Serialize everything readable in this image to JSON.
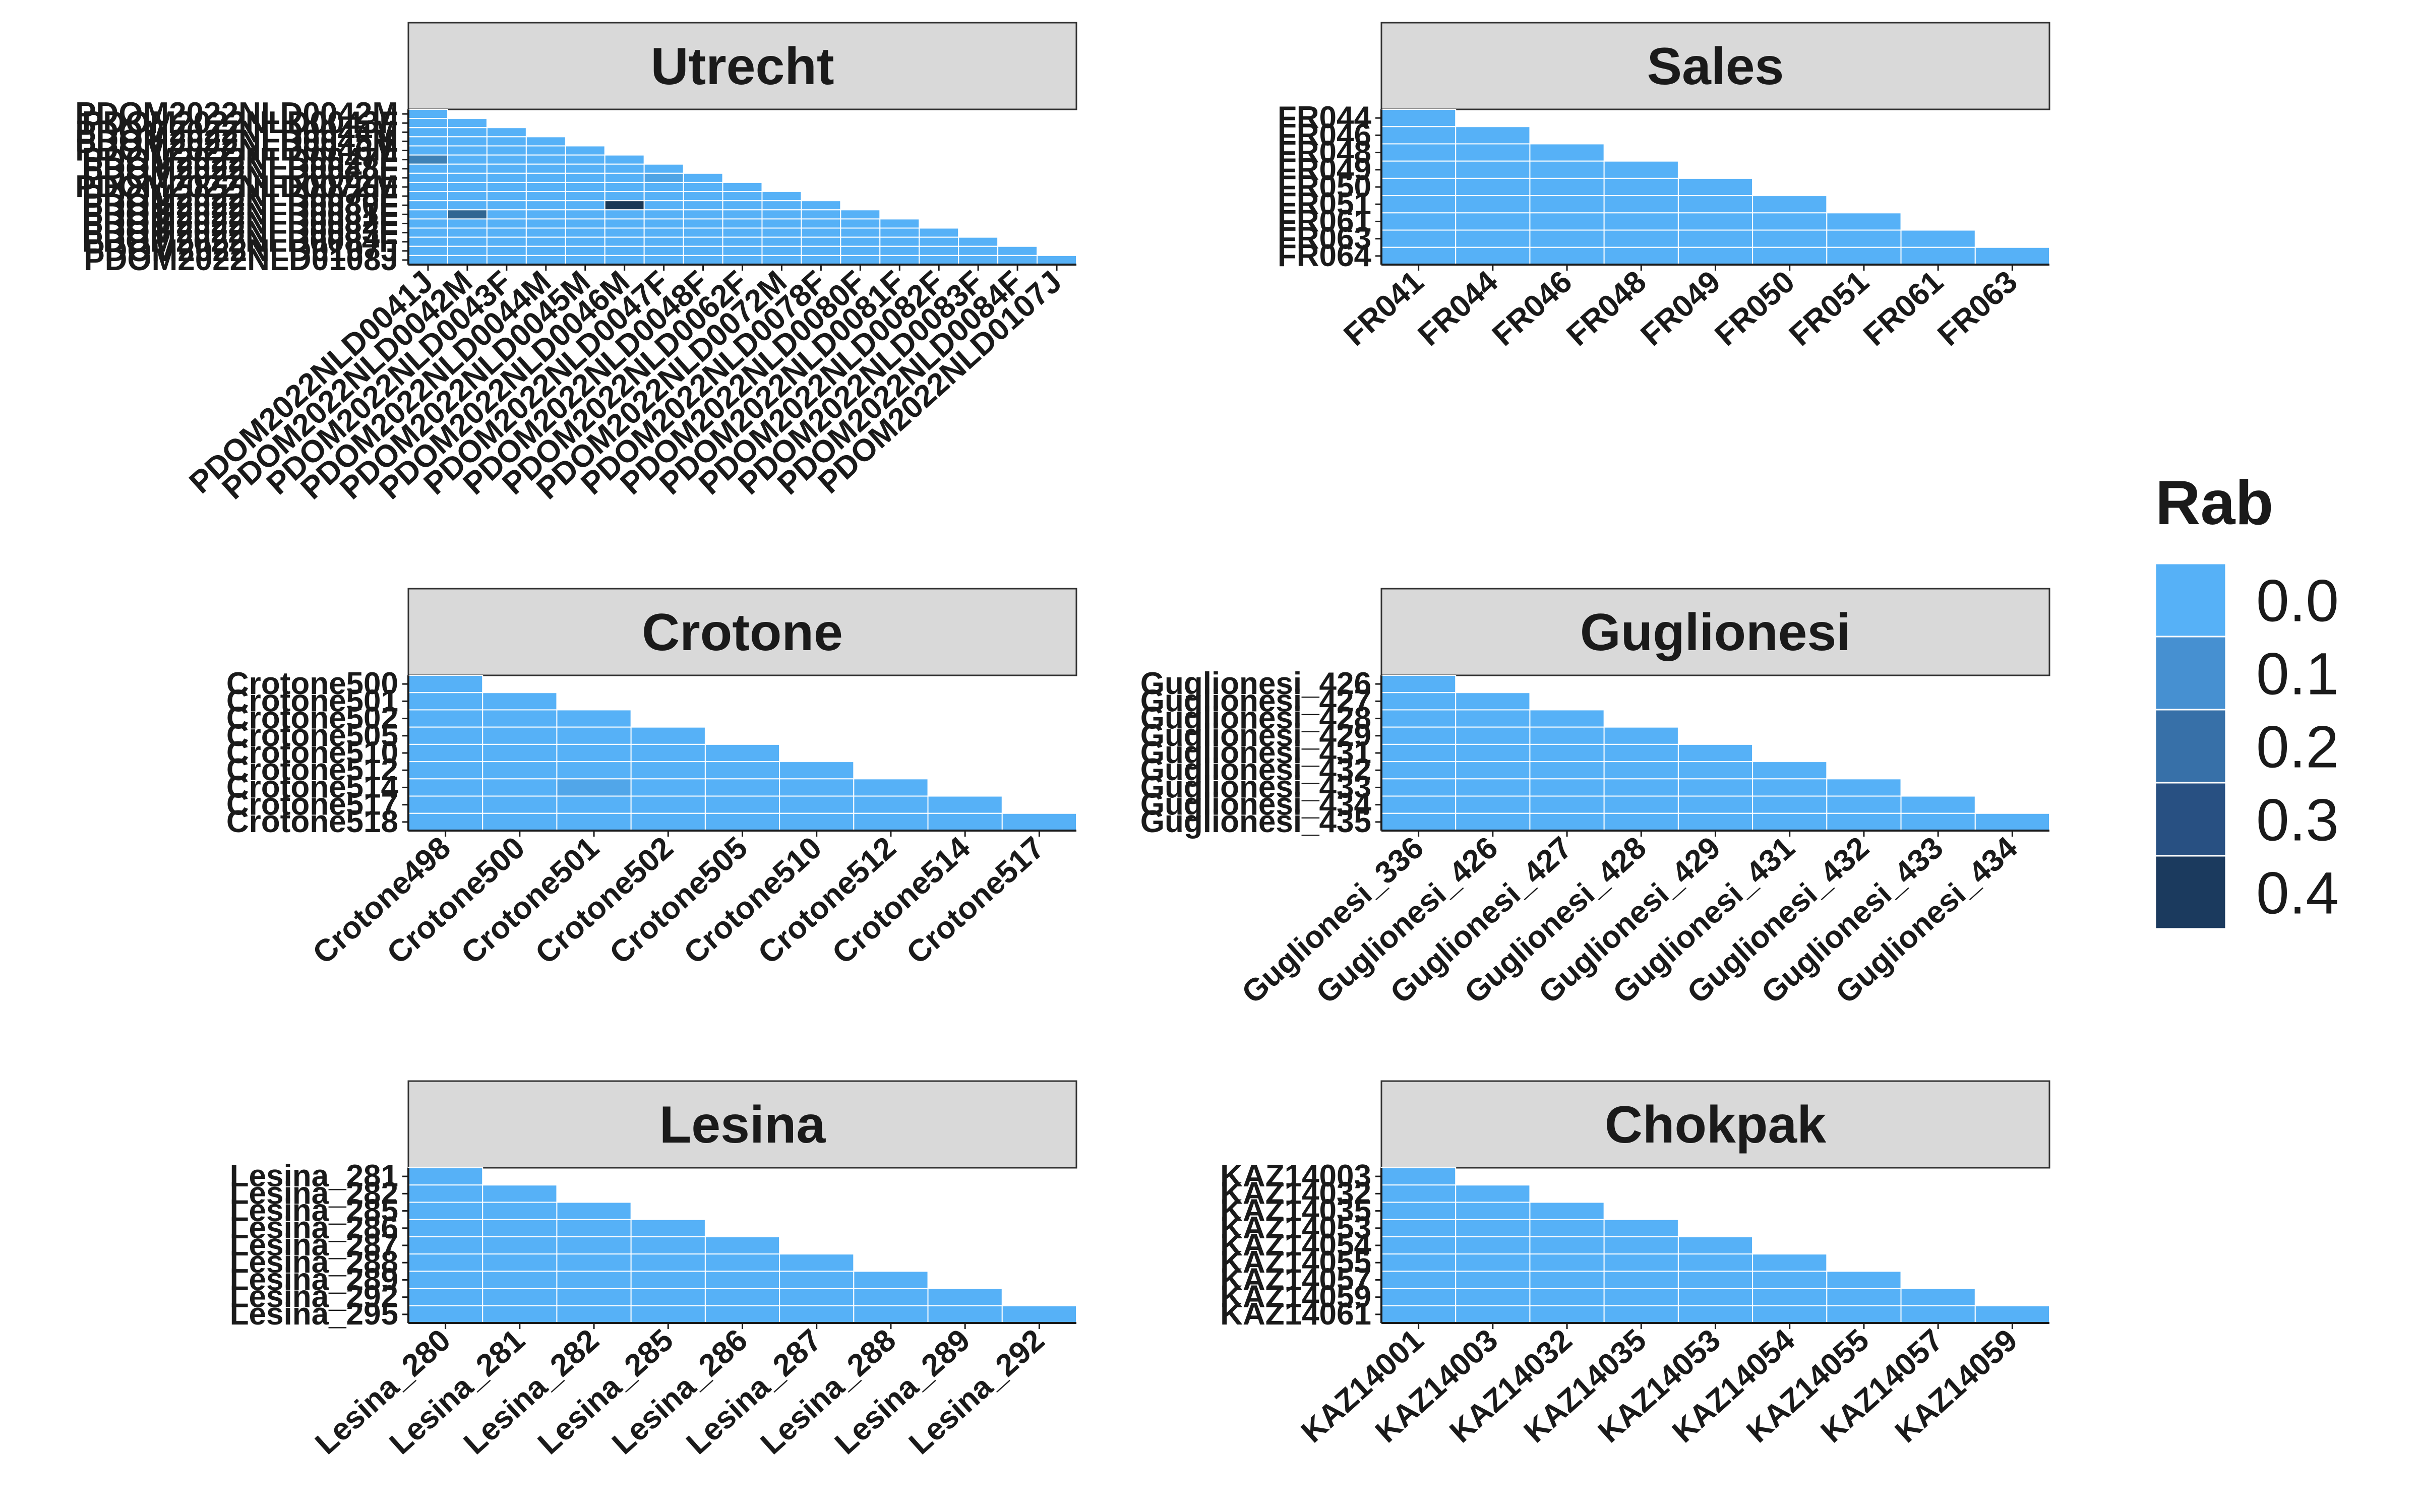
{
  "chart_data": [
    {
      "type": "heatmap",
      "title": "Utrecht",
      "x_categories": [
        "PDOM2022NLD0041J",
        "PDOM2022NLD0042M",
        "PDOM2022NLD0043F",
        "PDOM2022NLD0044M",
        "PDOM2022NLD0045M",
        "PDOM2022NLD0046M",
        "PDOM2022NLD0047F",
        "PDOM2022NLD0048F",
        "PDOM2022NLD0062F",
        "PDOM2022NLD0072M",
        "PDOM2022NLD0078F",
        "PDOM2022NLD0080F",
        "PDOM2022NLD0081F",
        "PDOM2022NLD0082F",
        "PDOM2022NLD0083F",
        "PDOM2022NLD0084F",
        "PDOM2022NLD0107J"
      ],
      "y_categories": [
        "PDOM2022NLD0042M",
        "PDOM2022NLD0043F",
        "PDOM2022NLD0044M",
        "PDOM2022NLD0045M",
        "PDOM2022NLD0046M",
        "PDOM2022NLD0047F",
        "PDOM2022NLD0048F",
        "PDOM2022NLD0062F",
        "PDOM2022NLD0072M",
        "PDOM2022NLD0078F",
        "PDOM2022NLD0080F",
        "PDOM2022NLD0081F",
        "PDOM2022NLD0082F",
        "PDOM2022NLD0083F",
        "PDOM2022NLD0084F",
        "PDOM2022NLD0107J",
        "PDOM2022NLD0108J"
      ],
      "highlights": [
        {
          "x": "PDOM2022NLD0041J",
          "y": "PDOM2022NLD0047F",
          "value": 0.18
        },
        {
          "x": "PDOM2022NLD0042M",
          "y": "PDOM2022NLD0081F",
          "value": 0.28
        },
        {
          "x": "PDOM2022NLD0046M",
          "y": "PDOM2022NLD0080F",
          "value": 0.45
        },
        {
          "x": "PDOM2022NLD0047F",
          "y": "PDOM2022NLD0062F",
          "value": 0.05
        }
      ]
    },
    {
      "type": "heatmap",
      "title": "Sales",
      "x_categories": [
        "FR041",
        "FR044",
        "FR046",
        "FR048",
        "FR049",
        "FR050",
        "FR051",
        "FR061",
        "FR063"
      ],
      "y_categories": [
        "FR044",
        "FR046",
        "FR048",
        "FR049",
        "FR050",
        "FR051",
        "FR061",
        "FR063",
        "FR064"
      ],
      "highlights": []
    },
    {
      "type": "heatmap",
      "title": "Crotone",
      "x_categories": [
        "Crotone498",
        "Crotone500",
        "Crotone501",
        "Crotone502",
        "Crotone505",
        "Crotone510",
        "Crotone512",
        "Crotone514",
        "Crotone517"
      ],
      "y_categories": [
        "Crotone500",
        "Crotone501",
        "Crotone502",
        "Crotone505",
        "Crotone510",
        "Crotone512",
        "Crotone514",
        "Crotone517",
        "Crotone518"
      ],
      "highlights": [
        {
          "x": "Crotone501",
          "y": "Crotone514",
          "value": 0.04
        }
      ]
    },
    {
      "type": "heatmap",
      "title": "Guglionesi",
      "x_categories": [
        "Guglionesi_336",
        "Guglionesi_426",
        "Guglionesi_427",
        "Guglionesi_428",
        "Guglionesi_429",
        "Guglionesi_431",
        "Guglionesi_432",
        "Guglionesi_433",
        "Guglionesi_434"
      ],
      "y_categories": [
        "Guglionesi_426",
        "Guglionesi_427",
        "Guglionesi_428",
        "Guglionesi_429",
        "Guglionesi_431",
        "Guglionesi_432",
        "Guglionesi_433",
        "Guglionesi_434",
        "Guglionesi_435"
      ],
      "highlights": []
    },
    {
      "type": "heatmap",
      "title": "Lesina",
      "x_categories": [
        "Lesina_280",
        "Lesina_281",
        "Lesina_282",
        "Lesina_285",
        "Lesina_286",
        "Lesina_287",
        "Lesina_288",
        "Lesina_289",
        "Lesina_292"
      ],
      "y_categories": [
        "Lesina_281",
        "Lesina_282",
        "Lesina_285",
        "Lesina_286",
        "Lesina_287",
        "Lesina_288",
        "Lesina_289",
        "Lesina_292",
        "Lesina_295"
      ],
      "highlights": []
    },
    {
      "type": "heatmap",
      "title": "Chokpak",
      "x_categories": [
        "KAZ14001",
        "KAZ14003",
        "KAZ14032",
        "KAZ14035",
        "KAZ14053",
        "KAZ14054",
        "KAZ14055",
        "KAZ14057",
        "KAZ14059"
      ],
      "y_categories": [
        "KAZ14003",
        "KAZ14032",
        "KAZ14035",
        "KAZ14053",
        "KAZ14054",
        "KAZ14055",
        "KAZ14057",
        "KAZ14059",
        "KAZ14061"
      ],
      "highlights": []
    }
  ],
  "legend": {
    "title": "Rab",
    "labels": [
      "0.0",
      "0.1",
      "0.2",
      "0.3",
      "0.4"
    ],
    "colors": [
      "#56b1f7",
      "#4690d1",
      "#3770a8",
      "#285082",
      "#1b3a5e"
    ]
  },
  "colors": {
    "strip_fill": "#d9d9d9",
    "grid_line": "#ffffff",
    "low": "#56b1f7",
    "high": "#132b43"
  }
}
